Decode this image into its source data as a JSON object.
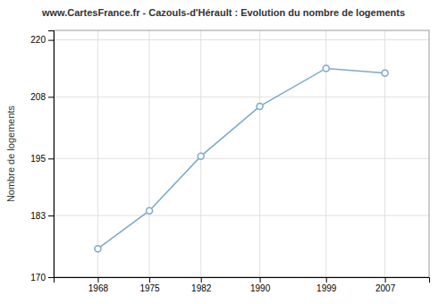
{
  "chart_data": {
    "type": "line",
    "title": "www.CartesFrance.fr - Cazouls-d'Hérault : Evolution du nombre de logements",
    "ylabel": "Nombre de logements",
    "x": [
      1968,
      1975,
      1982,
      1990,
      1999,
      2007
    ],
    "values": [
      176,
      184,
      195.5,
      206,
      214,
      213
    ],
    "xlim": [
      1962,
      2013
    ],
    "ylim": [
      170,
      222
    ],
    "xticks": [
      1968,
      1975,
      1982,
      1990,
      1999,
      2007
    ],
    "yticks": [
      170,
      183,
      195,
      208,
      220
    ],
    "color": "#7aaac8",
    "marker": "circle",
    "grid": true
  }
}
